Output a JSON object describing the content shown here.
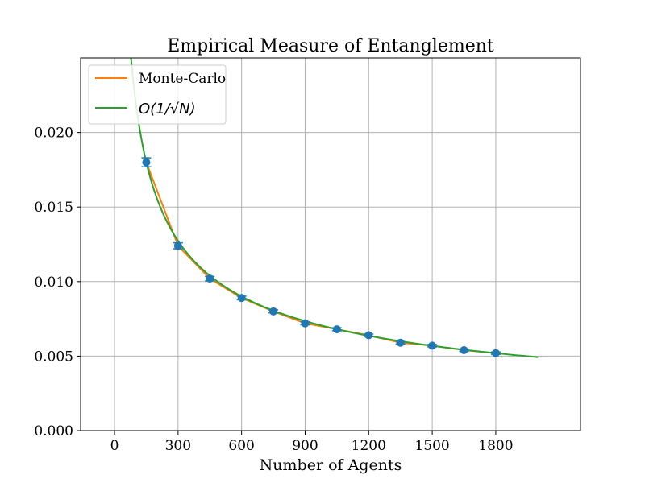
{
  "chart_data": {
    "type": "line",
    "title": "Empirical Measure of Entanglement",
    "xlabel": "Number of Agents",
    "ylabel": "",
    "xlim": [
      -160,
      2200
    ],
    "ylim": [
      0,
      0.025
    ],
    "xticks": [
      0,
      300,
      600,
      900,
      1200,
      1500,
      1800
    ],
    "xtick_labels": [
      "0",
      "300",
      "600",
      "900",
      "1200",
      "1500",
      "1800"
    ],
    "yticks": [
      0,
      0.005,
      0.01,
      0.015,
      0.02
    ],
    "ytick_labels": [
      "0.000",
      "0.005",
      "0.010",
      "0.015",
      "0.020"
    ],
    "grid": true,
    "legend_position": "top-left",
    "series": [
      {
        "name": "Monte-Carlo",
        "kind": "line-with-errorbars",
        "color": "#ff7f0e",
        "marker_color": "#1f77b4",
        "x": [
          150,
          300,
          450,
          600,
          750,
          900,
          1050,
          1200,
          1350,
          1500,
          1650,
          1800
        ],
        "values": [
          0.018,
          0.0124,
          0.0102,
          0.0089,
          0.008,
          0.0072,
          0.0068,
          0.0064,
          0.0059,
          0.0057,
          0.0054,
          0.0052
        ],
        "errors": [
          0.0003,
          0.0002,
          0.00015,
          0.00012,
          0.0001,
          0.0001,
          0.0001,
          8e-05,
          8e-05,
          8e-05,
          8e-05,
          8e-05
        ]
      },
      {
        "name": "O(1/√N)",
        "legend_text": "O(1/√N)",
        "kind": "curve",
        "color": "#2ca02c",
        "formula": "c / sqrt(N)",
        "coefficient": 0.2205,
        "x_range": [
          75,
          2000
        ]
      }
    ]
  }
}
